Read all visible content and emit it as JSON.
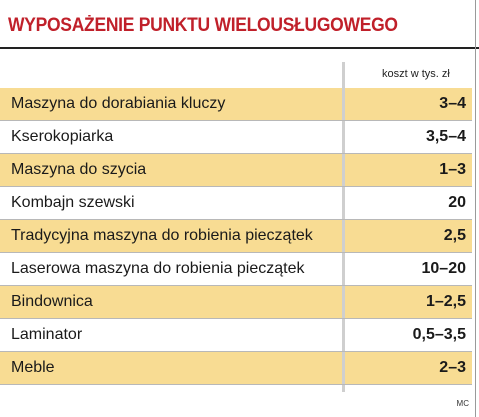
{
  "title": "WYPOSAŻENIE PUNKTU WIELOUSŁUGOWEGO",
  "unit_label": "koszt w tys. zł",
  "source": "MC",
  "colors": {
    "title": "#c0202a",
    "row_highlight": "#f8dc93",
    "rule": "#222222"
  },
  "chart_data": {
    "type": "table",
    "title": "WYPOSAŻENIE PUNKTU WIELOUSŁUGOWEGO",
    "columns": [
      "",
      "koszt w tys. zł"
    ],
    "rows": [
      {
        "name": "Maszyna do dorabiania kluczy",
        "value": "3–4",
        "shaded": true
      },
      {
        "name": "Kserokopiarka",
        "value": "3,5–4",
        "shaded": false
      },
      {
        "name": "Maszyna do szycia",
        "value": "1–3",
        "shaded": true
      },
      {
        "name": "Kombajn szewski",
        "value": "20",
        "shaded": false
      },
      {
        "name": "Tradycyjna maszyna do robienia pieczątek",
        "value": "2,5",
        "shaded": true
      },
      {
        "name": "Laserowa maszyna do robienia pieczątek",
        "value": "10–20",
        "shaded": false
      },
      {
        "name": "Bindownica",
        "value": "1–2,5",
        "shaded": true
      },
      {
        "name": "Laminator",
        "value": "0,5–3,5",
        "shaded": false
      },
      {
        "name": "Meble",
        "value": "2–3",
        "shaded": true
      }
    ]
  }
}
